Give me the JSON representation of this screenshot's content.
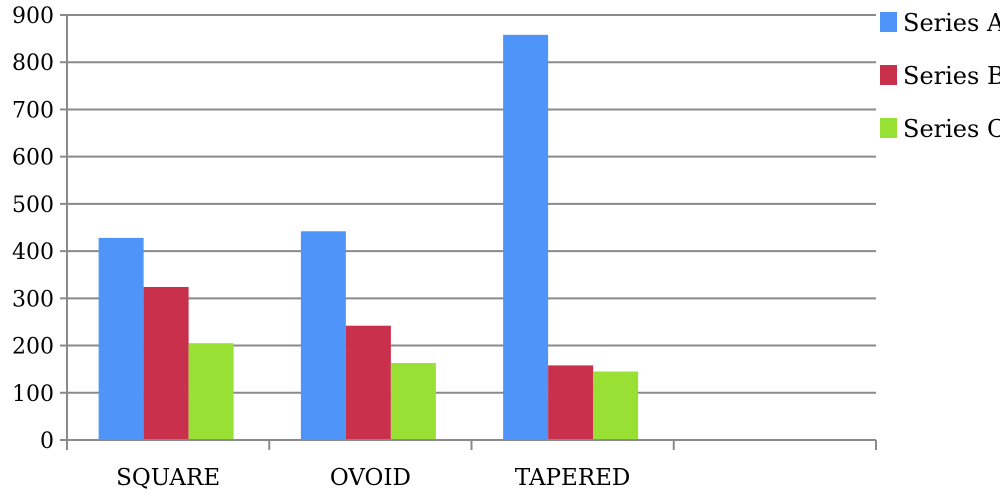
{
  "chart_data": {
    "type": "bar",
    "categories": [
      "SQUARE",
      "OVOID",
      "TAPERED",
      ""
    ],
    "series": [
      {
        "name": "Series A",
        "color": "#4f94f8",
        "values": [
          428,
          442,
          858,
          null
        ]
      },
      {
        "name": "Series B",
        "color": "#c8304c",
        "values": [
          324,
          242,
          158,
          null
        ]
      },
      {
        "name": "Series C",
        "color": "#98e033",
        "values": [
          205,
          163,
          145,
          null
        ]
      }
    ],
    "ylim": [
      0,
      900
    ],
    "yticks": [
      "0",
      "100",
      "200",
      "300",
      "400",
      "500",
      "600",
      "700",
      "800",
      "900"
    ],
    "grid": true,
    "legend_position": "right"
  }
}
